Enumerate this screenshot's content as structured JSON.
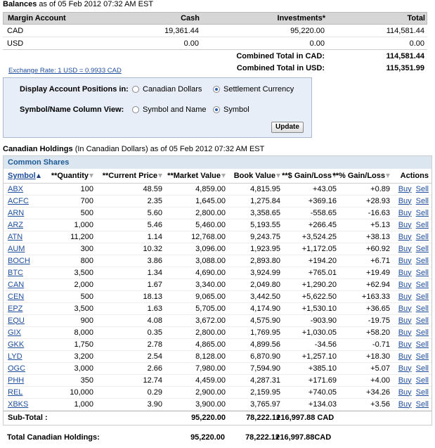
{
  "balances": {
    "title": "Balances",
    "as_of": "as of 05 Feb 2012 07:32 AM EST",
    "columns": [
      "Margin Account",
      "Cash",
      "Investments*",
      "Total"
    ],
    "rows": [
      [
        "CAD",
        "19,361.44",
        "95,220.00",
        "114,581.44"
      ],
      [
        "USD",
        "0.00",
        "0.00",
        "0.00"
      ]
    ],
    "combined": [
      [
        "Combined Total in CAD:",
        "114,581.44"
      ],
      [
        "Combined Total in USD:",
        "115,351.99"
      ]
    ],
    "exchange_rate": "Exchange Rate: 1 USD = 0.9933 CAD"
  },
  "settings": {
    "rows": [
      {
        "label": "Display Account Positions in:",
        "options": [
          "Canadian Dollars",
          "Settlement Currency"
        ],
        "selected": 1
      },
      {
        "label": "Symbol/Name Column View:",
        "options": [
          "Symbol and Name",
          "Symbol"
        ],
        "selected": 1
      }
    ],
    "button": "Update"
  },
  "holdings": {
    "title": "Canadian Holdings",
    "currency_note": "(In Canadian Dollars)",
    "as_of": "as of 05 Feb 2012 07:32 AM EST",
    "section": "Common Shares",
    "columns": [
      "Symbol",
      "**Quantity",
      "**Current Price",
      "**Market Value",
      "Book Value",
      "**$ Gain/Loss",
      "**% Gain/Loss",
      "Actions"
    ],
    "sort": {
      "column": 0,
      "ascending": true
    },
    "actions": [
      "Buy",
      "Sell"
    ],
    "rows": [
      [
        "ABX",
        "100",
        "48.59",
        "4,859.00",
        "4,815.95",
        "+43.05",
        "+0.89"
      ],
      [
        "ACFC",
        "700",
        "2.35",
        "1,645.00",
        "1,275.84",
        "+369.16",
        "+28.93"
      ],
      [
        "ARN",
        "500",
        "5.60",
        "2,800.00",
        "3,358.65",
        "-558.65",
        "-16.63"
      ],
      [
        "ARZ",
        "1,000",
        "5.46",
        "5,460.00",
        "5,193.55",
        "+266.45",
        "+5.13"
      ],
      [
        "ATN",
        "11,200",
        "1.14",
        "12,768.00",
        "9,243.75",
        "+3,524.25",
        "+38.13"
      ],
      [
        "AUM",
        "300",
        "10.32",
        "3,096.00",
        "1,923.95",
        "+1,172.05",
        "+60.92"
      ],
      [
        "BOCH",
        "800",
        "3.86",
        "3,088.00",
        "2,893.80",
        "+194.20",
        "+6.71"
      ],
      [
        "BTC",
        "3,500",
        "1.34",
        "4,690.00",
        "3,924.99",
        "+765.01",
        "+19.49"
      ],
      [
        "CAN",
        "2,000",
        "1.67",
        "3,340.00",
        "2,049.80",
        "+1,290.20",
        "+62.94"
      ],
      [
        "CEN",
        "500",
        "18.13",
        "9,065.00",
        "3,442.50",
        "+5,622.50",
        "+163.33"
      ],
      [
        "EPZ",
        "3,500",
        "1.63",
        "5,705.00",
        "4,174.90",
        "+1,530.10",
        "+36.65"
      ],
      [
        "EQU",
        "900",
        "4.08",
        "3,672.00",
        "4,575.90",
        "-903.90",
        "-19.75"
      ],
      [
        "GIX",
        "8,000",
        "0.35",
        "2,800.00",
        "1,769.95",
        "+1,030.05",
        "+58.20"
      ],
      [
        "GKK",
        "1,750",
        "2.78",
        "4,865.00",
        "4,899.56",
        "-34.56",
        "-0.71"
      ],
      [
        "LYD",
        "3,200",
        "2.54",
        "8,128.00",
        "6,870.90",
        "+1,257.10",
        "+18.30"
      ],
      [
        "OGC",
        "3,000",
        "2.66",
        "7,980.00",
        "7,594.90",
        "+385.10",
        "+5.07"
      ],
      [
        "PHH",
        "350",
        "12.74",
        "4,459.00",
        "4,287.31",
        "+171.69",
        "+4.00"
      ],
      [
        "REL",
        "10,000",
        "0.29",
        "2,900.00",
        "2,159.95",
        "+740.05",
        "+34.26"
      ],
      [
        "XBKS",
        "1,000",
        "3.90",
        "3,900.00",
        "3,765.97",
        "+134.03",
        "+3.56"
      ]
    ],
    "subtotal": {
      "label": "Sub-Total :",
      "values": [
        "95,220.00",
        "78,222.12",
        "+16,997.88 CAD"
      ]
    },
    "total": {
      "label": "Total Canadian Holdings:",
      "values": [
        "95,220.00",
        "78,222.12",
        "+16,997.88CAD"
      ]
    }
  }
}
